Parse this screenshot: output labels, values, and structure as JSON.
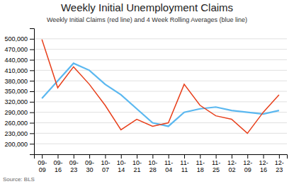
{
  "chart_data": {
    "type": "line",
    "title": "Weekly Initial Unemployment Claims",
    "subtitle": "Weekly Initial Claims (red line) and 4 Week Rolling Averages (blue line)",
    "source": "Source: BLS",
    "categories": [
      "09-\n09",
      "09-\n16",
      "09-\n23",
      "09-\n30",
      "10-\n07",
      "10-\n14",
      "10-\n21",
      "10-\n28",
      "11-\n04",
      "11-\n11",
      "11-\n18",
      "11-\n25",
      "12-\n02",
      "12-\n09",
      "12-\n16",
      "12-\n23"
    ],
    "series": [
      {
        "color": "#e8401c",
        "values": [
          498000,
          360000,
          420000,
          370000,
          310000,
          240000,
          270000,
          250000,
          260000,
          370000,
          310000,
          280000,
          270000,
          230000,
          290000,
          340000
        ]
      },
      {
        "color": "#5bb8f0",
        "values": [
          330000,
          380000,
          430000,
          410000,
          370000,
          340000,
          300000,
          260000,
          250000,
          290000,
          300000,
          305000,
          295000,
          290000,
          285000,
          295000
        ]
      }
    ],
    "ylim": [
      170000,
      530000
    ],
    "yticks": [
      {
        "value": 200000,
        "label": "200,000"
      },
      {
        "value": 230000,
        "label": "230,000"
      },
      {
        "value": 260000,
        "label": "260,000"
      },
      {
        "value": 290000,
        "label": "290,000"
      },
      {
        "value": 320000,
        "label": "320,000"
      },
      {
        "value": 350000,
        "label": "350,000"
      },
      {
        "value": 380000,
        "label": "380,000"
      },
      {
        "value": 410000,
        "label": "410,000"
      },
      {
        "value": 440000,
        "label": "440,000"
      },
      {
        "value": 470000,
        "label": "470,000"
      },
      {
        "value": 500000,
        "label": "500,000"
      }
    ],
    "grid": true
  }
}
